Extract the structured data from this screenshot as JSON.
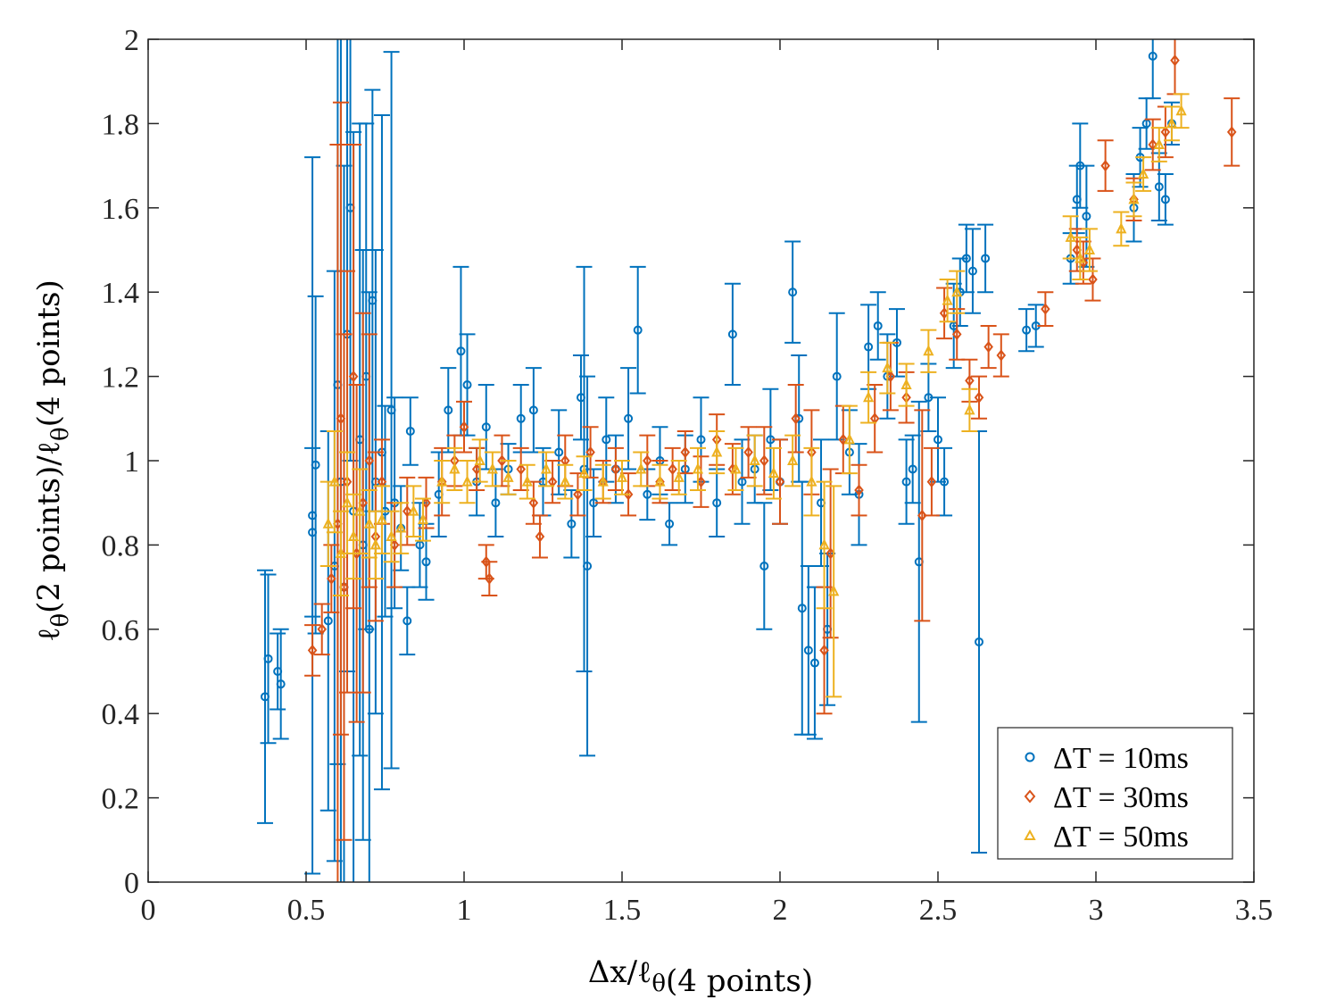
{
  "chart_data": {
    "type": "scatter",
    "title": "",
    "xlabel": {
      "main": "Δx/ℓ",
      "sub_symbol": "θ",
      "sub_text": "(4 points)"
    },
    "ylabel": {
      "main": "ℓ",
      "sub1": "θ",
      "mid": "(2 points)/ℓ",
      "sub2": "θ",
      "tail": "(4 points)"
    },
    "xlim": [
      0,
      3.5
    ],
    "ylim": [
      0,
      2
    ],
    "xticks": [
      "0",
      "0.5",
      "1",
      "1.5",
      "2",
      "2.5",
      "3",
      "3.5"
    ],
    "xtick_values": [
      0,
      0.5,
      1,
      1.5,
      2,
      2.5,
      3,
      3.5
    ],
    "yticks": [
      "0",
      "0.2",
      "0.4",
      "0.6",
      "0.8",
      "1",
      "1.2",
      "1.4",
      "1.6",
      "1.8",
      "2"
    ],
    "ytick_values": [
      0,
      0.2,
      0.4,
      0.6,
      0.8,
      1,
      1.2,
      1.4,
      1.6,
      1.8,
      2
    ],
    "grid": false,
    "legend_position": "bottom-right",
    "series": [
      {
        "name": "ΔT = 10ms",
        "color": "#0072BD",
        "marker": "circle",
        "points": [
          [
            0.37,
            0.44,
            0.3
          ],
          [
            0.38,
            0.53,
            0.2
          ],
          [
            0.41,
            0.5,
            0.09
          ],
          [
            0.42,
            0.47,
            0.13
          ],
          [
            0.52,
            0.87,
            0.85
          ],
          [
            0.52,
            0.83,
            0.2
          ],
          [
            0.53,
            0.99,
            0.4
          ],
          [
            0.57,
            0.62,
            0.45
          ],
          [
            0.59,
            0.75,
            0.7
          ],
          [
            0.6,
            1.18,
            0.9
          ],
          [
            0.61,
            0.95,
            1.1
          ],
          [
            0.62,
            0.7,
            1.0
          ],
          [
            0.63,
            1.3,
            0.8
          ],
          [
            0.64,
            1.6,
            0.6
          ],
          [
            0.65,
            0.88,
            0.9
          ],
          [
            0.67,
            1.05,
            0.75
          ],
          [
            0.68,
            0.8,
            0.7
          ],
          [
            0.69,
            1.2,
            0.6
          ],
          [
            0.7,
            0.6,
            0.8
          ],
          [
            0.71,
            1.38,
            0.5
          ],
          [
            0.72,
            0.95,
            0.55
          ],
          [
            0.74,
            1.02,
            0.8
          ],
          [
            0.75,
            0.88,
            0.25
          ],
          [
            0.77,
            1.12,
            0.85
          ],
          [
            0.78,
            0.9,
            0.25
          ],
          [
            0.8,
            0.84,
            0.1
          ],
          [
            0.82,
            0.62,
            0.08
          ],
          [
            0.83,
            1.07,
            0.08
          ],
          [
            0.86,
            0.8,
            0.1
          ],
          [
            0.88,
            0.76,
            0.09
          ],
          [
            0.92,
            0.92,
            0.1
          ],
          [
            0.95,
            1.12,
            0.1
          ],
          [
            0.99,
            1.26,
            0.2
          ],
          [
            1.01,
            1.18,
            0.12
          ],
          [
            1.04,
            0.95,
            0.08
          ],
          [
            1.07,
            1.08,
            0.1
          ],
          [
            1.1,
            0.9,
            0.08
          ],
          [
            1.14,
            0.98,
            0.06
          ],
          [
            1.18,
            1.1,
            0.08
          ],
          [
            1.22,
            1.12,
            0.1
          ],
          [
            1.25,
            0.95,
            0.08
          ],
          [
            1.3,
            1.02,
            0.1
          ],
          [
            1.34,
            0.85,
            0.08
          ],
          [
            1.37,
            1.15,
            0.1
          ],
          [
            1.38,
            0.98,
            0.48
          ],
          [
            1.39,
            0.75,
            0.45
          ],
          [
            1.41,
            0.9,
            0.08
          ],
          [
            1.45,
            1.05,
            0.1
          ],
          [
            1.48,
            0.98,
            0.08
          ],
          [
            1.52,
            1.1,
            0.12
          ],
          [
            1.55,
            1.31,
            0.15
          ],
          [
            1.58,
            0.92,
            0.06
          ],
          [
            1.62,
            1.0,
            0.08
          ],
          [
            1.65,
            0.85,
            0.05
          ],
          [
            1.7,
            0.98,
            0.08
          ],
          [
            1.75,
            1.05,
            0.1
          ],
          [
            1.8,
            0.9,
            0.08
          ],
          [
            1.85,
            1.3,
            0.12
          ],
          [
            1.88,
            0.95,
            0.1
          ],
          [
            1.92,
            0.98,
            0.08
          ],
          [
            1.95,
            0.75,
            0.15
          ],
          [
            1.97,
            1.05,
            0.12
          ],
          [
            2.0,
            0.95,
            0.1
          ],
          [
            2.04,
            1.4,
            0.12
          ],
          [
            2.06,
            1.1,
            0.15
          ],
          [
            2.07,
            0.65,
            0.3
          ],
          [
            2.09,
            0.55,
            0.2
          ],
          [
            2.11,
            0.52,
            0.18
          ],
          [
            2.13,
            0.9,
            0.15
          ],
          [
            2.15,
            0.6,
            0.18
          ],
          [
            2.18,
            1.2,
            0.15
          ],
          [
            2.22,
            1.02,
            0.1
          ],
          [
            2.25,
            0.92,
            0.12
          ],
          [
            2.28,
            1.27,
            0.1
          ],
          [
            2.31,
            1.32,
            0.08
          ],
          [
            2.34,
            1.2,
            0.1
          ],
          [
            2.37,
            1.28,
            0.08
          ],
          [
            2.4,
            0.95,
            0.1
          ],
          [
            2.42,
            0.98,
            0.08
          ],
          [
            2.44,
            0.76,
            0.38
          ],
          [
            2.47,
            1.15,
            0.08
          ],
          [
            2.5,
            1.05,
            0.1
          ],
          [
            2.52,
            0.95,
            0.08
          ],
          [
            2.55,
            1.32,
            0.1
          ],
          [
            2.57,
            1.4,
            0.08
          ],
          [
            2.59,
            1.48,
            0.08
          ],
          [
            2.61,
            1.45,
            0.1
          ],
          [
            2.63,
            0.57,
            0.5
          ],
          [
            2.65,
            1.48,
            0.08
          ],
          [
            2.78,
            1.31,
            0.05
          ],
          [
            2.81,
            1.32,
            0.05
          ],
          [
            2.92,
            1.48,
            0.06
          ],
          [
            2.94,
            1.62,
            0.08
          ],
          [
            2.95,
            1.7,
            0.1
          ],
          [
            2.97,
            1.58,
            0.12
          ],
          [
            3.12,
            1.6,
            0.08
          ],
          [
            3.14,
            1.72,
            0.07
          ],
          [
            3.16,
            1.8,
            0.06
          ],
          [
            3.18,
            1.96,
            0.1
          ],
          [
            3.2,
            1.65,
            0.08
          ],
          [
            3.22,
            1.62,
            0.06
          ],
          [
            3.24,
            1.8,
            0.05
          ]
        ]
      },
      {
        "name": "ΔT = 30ms",
        "color": "#D95319",
        "marker": "diamond",
        "points": [
          [
            0.52,
            0.55,
            0.06
          ],
          [
            0.55,
            0.6,
            0.06
          ],
          [
            0.58,
            0.72,
            0.08
          ],
          [
            0.6,
            0.85,
            0.9
          ],
          [
            0.61,
            1.1,
            0.75
          ],
          [
            0.62,
            0.7,
            0.6
          ],
          [
            0.63,
            0.95,
            0.5
          ],
          [
            0.65,
            1.2,
            0.55
          ],
          [
            0.66,
            0.78,
            0.4
          ],
          [
            0.68,
            0.9,
            0.45
          ],
          [
            0.7,
            1.0,
            0.3
          ],
          [
            0.72,
            0.82,
            0.2
          ],
          [
            0.74,
            0.95,
            0.1
          ],
          [
            0.78,
            0.8,
            0.1
          ],
          [
            0.82,
            0.88,
            0.08
          ],
          [
            0.88,
            0.9,
            0.06
          ],
          [
            0.93,
            0.95,
            0.08
          ],
          [
            0.97,
            1.0,
            0.06
          ],
          [
            1.0,
            1.08,
            0.06
          ],
          [
            1.04,
            0.98,
            0.05
          ],
          [
            1.07,
            0.76,
            0.04
          ],
          [
            1.08,
            0.72,
            0.04
          ],
          [
            1.12,
            1.0,
            0.06
          ],
          [
            1.18,
            0.98,
            0.05
          ],
          [
            1.22,
            0.9,
            0.05
          ],
          [
            1.24,
            0.82,
            0.05
          ],
          [
            1.28,
            0.95,
            0.05
          ],
          [
            1.32,
            1.0,
            0.06
          ],
          [
            1.36,
            0.92,
            0.05
          ],
          [
            1.4,
            1.02,
            0.06
          ],
          [
            1.44,
            0.95,
            0.05
          ],
          [
            1.48,
            0.98,
            0.05
          ],
          [
            1.52,
            0.92,
            0.05
          ],
          [
            1.58,
            1.0,
            0.06
          ],
          [
            1.62,
            0.95,
            0.05
          ],
          [
            1.66,
            0.98,
            0.05
          ],
          [
            1.7,
            1.02,
            0.05
          ],
          [
            1.75,
            0.95,
            0.06
          ],
          [
            1.8,
            1.05,
            0.06
          ],
          [
            1.85,
            0.98,
            0.06
          ],
          [
            1.9,
            1.02,
            0.06
          ],
          [
            1.95,
            1.0,
            0.08
          ],
          [
            2.0,
            0.95,
            0.1
          ],
          [
            2.05,
            1.1,
            0.08
          ],
          [
            2.1,
            1.02,
            0.1
          ],
          [
            2.14,
            0.55,
            0.15
          ],
          [
            2.16,
            0.78,
            0.2
          ],
          [
            2.2,
            1.05,
            0.08
          ],
          [
            2.25,
            0.93,
            0.06
          ],
          [
            2.3,
            1.1,
            0.08
          ],
          [
            2.35,
            1.2,
            0.08
          ],
          [
            2.4,
            1.15,
            0.06
          ],
          [
            2.45,
            0.87,
            0.25
          ],
          [
            2.48,
            0.95,
            0.08
          ],
          [
            2.52,
            1.35,
            0.06
          ],
          [
            2.56,
            1.3,
            0.06
          ],
          [
            2.6,
            1.19,
            0.05
          ],
          [
            2.63,
            1.15,
            0.05
          ],
          [
            2.66,
            1.27,
            0.05
          ],
          [
            2.7,
            1.25,
            0.05
          ],
          [
            2.84,
            1.36,
            0.04
          ],
          [
            2.94,
            1.5,
            0.05
          ],
          [
            2.96,
            1.47,
            0.05
          ],
          [
            2.99,
            1.43,
            0.05
          ],
          [
            3.03,
            1.7,
            0.06
          ],
          [
            3.12,
            1.62,
            0.05
          ],
          [
            3.18,
            1.75,
            0.06
          ],
          [
            3.22,
            1.78,
            0.06
          ],
          [
            3.25,
            1.95,
            0.08
          ],
          [
            3.43,
            1.78,
            0.08
          ]
        ]
      },
      {
        "name": "ΔT = 50ms",
        "color": "#EDB120",
        "marker": "triangle",
        "points": [
          [
            0.57,
            0.85,
            0.1
          ],
          [
            0.59,
            0.95,
            0.12
          ],
          [
            0.61,
            0.78,
            0.1
          ],
          [
            0.63,
            0.9,
            0.12
          ],
          [
            0.65,
            0.82,
            0.1
          ],
          [
            0.67,
            0.88,
            0.1
          ],
          [
            0.7,
            0.85,
            0.08
          ],
          [
            0.72,
            0.8,
            0.08
          ],
          [
            0.74,
            0.86,
            0.08
          ],
          [
            0.77,
            0.82,
            0.06
          ],
          [
            0.8,
            0.84,
            0.06
          ],
          [
            0.84,
            0.88,
            0.06
          ],
          [
            0.87,
            0.86,
            0.05
          ],
          [
            0.93,
            0.95,
            0.05
          ],
          [
            0.97,
            0.98,
            0.05
          ],
          [
            1.01,
            0.95,
            0.05
          ],
          [
            1.05,
            1.0,
            0.05
          ],
          [
            1.09,
            0.98,
            0.04
          ],
          [
            1.14,
            0.96,
            0.04
          ],
          [
            1.2,
            0.95,
            0.04
          ],
          [
            1.26,
            0.98,
            0.04
          ],
          [
            1.32,
            0.95,
            0.04
          ],
          [
            1.38,
            0.97,
            0.04
          ],
          [
            1.44,
            0.95,
            0.04
          ],
          [
            1.5,
            0.96,
            0.04
          ],
          [
            1.56,
            0.98,
            0.04
          ],
          [
            1.62,
            0.95,
            0.04
          ],
          [
            1.68,
            0.96,
            0.04
          ],
          [
            1.74,
            0.98,
            0.05
          ],
          [
            1.8,
            1.02,
            0.05
          ],
          [
            1.86,
            0.98,
            0.05
          ],
          [
            1.92,
            1.0,
            0.06
          ],
          [
            1.98,
            0.97,
            0.06
          ],
          [
            2.04,
            1.0,
            0.06
          ],
          [
            2.1,
            0.95,
            0.08
          ],
          [
            2.14,
            0.8,
            0.15
          ],
          [
            2.17,
            0.69,
            0.25
          ],
          [
            2.22,
            1.05,
            0.08
          ],
          [
            2.28,
            1.15,
            0.06
          ],
          [
            2.34,
            1.22,
            0.06
          ],
          [
            2.4,
            1.18,
            0.05
          ],
          [
            2.47,
            1.26,
            0.05
          ],
          [
            2.53,
            1.38,
            0.05
          ],
          [
            2.56,
            1.4,
            0.05
          ],
          [
            2.6,
            1.12,
            0.05
          ],
          [
            2.92,
            1.53,
            0.05
          ],
          [
            2.95,
            1.48,
            0.05
          ],
          [
            2.98,
            1.5,
            0.05
          ],
          [
            3.08,
            1.55,
            0.04
          ],
          [
            3.12,
            1.62,
            0.04
          ],
          [
            3.15,
            1.68,
            0.04
          ],
          [
            3.2,
            1.75,
            0.04
          ],
          [
            3.24,
            1.8,
            0.04
          ],
          [
            3.27,
            1.83,
            0.04
          ]
        ]
      }
    ]
  }
}
